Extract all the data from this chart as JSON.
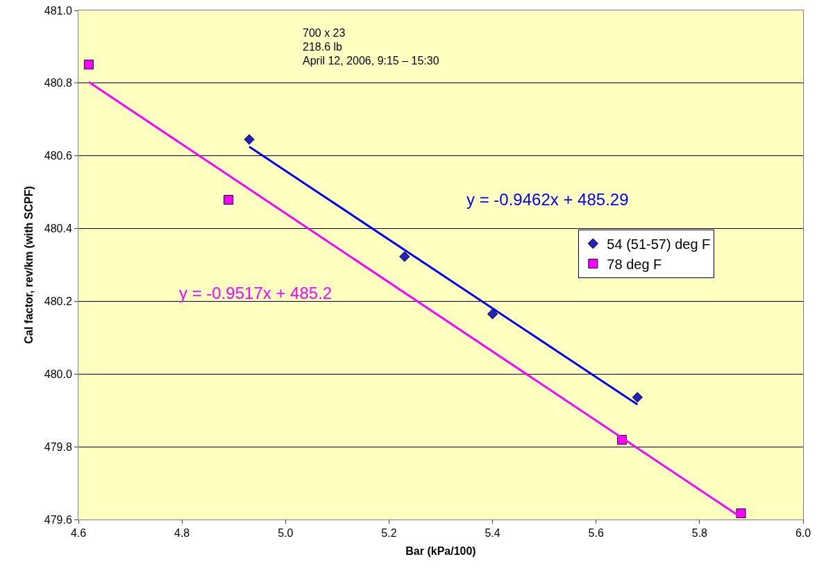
{
  "chart_data": {
    "type": "scatter",
    "xlabel": "Bar (kPa/100)",
    "ylabel": "Cal factor, rev/km (with SCPF)",
    "annotations": [
      "700 x 23",
      "218.6 lb",
      "April 12, 2006, 9:15 – 15:30"
    ],
    "series": [
      {
        "name": "54 (51-57) deg F",
        "marker": "diamond",
        "color": "#2222bb",
        "x": [
          4.93,
          5.23,
          5.4,
          5.68
        ],
        "values": [
          480.645,
          480.323,
          480.165,
          479.936
        ]
      },
      {
        "name": "78 deg F",
        "marker": "square",
        "color": "#ff00ff",
        "x": [
          4.62,
          4.89,
          5.65,
          5.88
        ],
        "values": [
          480.851,
          480.479,
          479.819,
          479.617
        ]
      },
      {
        "name": "y = -0.9462x + 485.29",
        "type": "line",
        "marker": "none",
        "color": "#0000ff",
        "x": [
          4.93,
          5.68
        ],
        "values": [
          480.625,
          479.916
        ]
      },
      {
        "name": "y = -0.9517x + 485.2",
        "type": "line",
        "marker": "none",
        "color": "#ff00ff",
        "x": [
          4.62,
          5.88
        ],
        "values": [
          480.803,
          479.606
        ]
      }
    ],
    "xlim": [
      4.6,
      6.0
    ],
    "xticks": [
      {
        "value": 4.6,
        "label": "4.6"
      },
      {
        "value": 4.8,
        "label": "4.8"
      },
      {
        "value": 5.0,
        "label": "5.0"
      },
      {
        "value": 5.2,
        "label": "5.2"
      },
      {
        "value": 5.4,
        "label": "5.4"
      },
      {
        "value": 5.6,
        "label": "5.6"
      },
      {
        "value": 5.8,
        "label": "5.8"
      },
      {
        "value": 6.0,
        "label": "6.0"
      }
    ],
    "ylim": [
      479.6,
      481.0
    ],
    "yticks": [
      {
        "value": 479.6,
        "label": "479.6"
      },
      {
        "value": 479.8,
        "label": "479.8"
      },
      {
        "value": 480.0,
        "label": "480.0"
      },
      {
        "value": 480.2,
        "label": "480.2"
      },
      {
        "value": 480.4,
        "label": "480.4"
      },
      {
        "value": 480.6,
        "label": "480.6"
      },
      {
        "value": 480.8,
        "label": "480.8"
      },
      {
        "value": 481.0,
        "label": "481.0"
      }
    ],
    "grid": "y",
    "legend": "right"
  }
}
